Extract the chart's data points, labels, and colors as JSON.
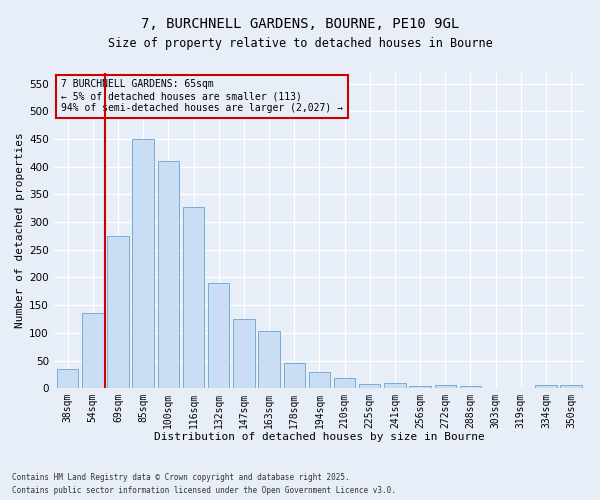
{
  "title1": "7, BURCHNELL GARDENS, BOURNE, PE10 9GL",
  "title2": "Size of property relative to detached houses in Bourne",
  "xlabel": "Distribution of detached houses by size in Bourne",
  "ylabel": "Number of detached properties",
  "categories": [
    "38sqm",
    "54sqm",
    "69sqm",
    "85sqm",
    "100sqm",
    "116sqm",
    "132sqm",
    "147sqm",
    "163sqm",
    "178sqm",
    "194sqm",
    "210sqm",
    "225sqm",
    "241sqm",
    "256sqm",
    "272sqm",
    "288sqm",
    "303sqm",
    "319sqm",
    "334sqm",
    "350sqm"
  ],
  "values": [
    35,
    135,
    275,
    450,
    410,
    327,
    190,
    125,
    103,
    46,
    30,
    18,
    7,
    10,
    4,
    5,
    4,
    1,
    1,
    6,
    6
  ],
  "bar_color": "#c9ddf5",
  "bar_edge_color": "#7aadd4",
  "vline_color": "#cc0000",
  "vline_x": 1.5,
  "annotation_text": "7 BURCHNELL GARDENS: 65sqm\n← 5% of detached houses are smaller (113)\n94% of semi-detached houses are larger (2,027) →",
  "annotation_box_edgecolor": "#cc0000",
  "ylim": [
    0,
    570
  ],
  "yticks": [
    0,
    50,
    100,
    150,
    200,
    250,
    300,
    350,
    400,
    450,
    500,
    550
  ],
  "background_color": "#e8eef8",
  "footer1": "Contains HM Land Registry data © Crown copyright and database right 2025.",
  "footer2": "Contains public sector information licensed under the Open Government Licence v3.0."
}
